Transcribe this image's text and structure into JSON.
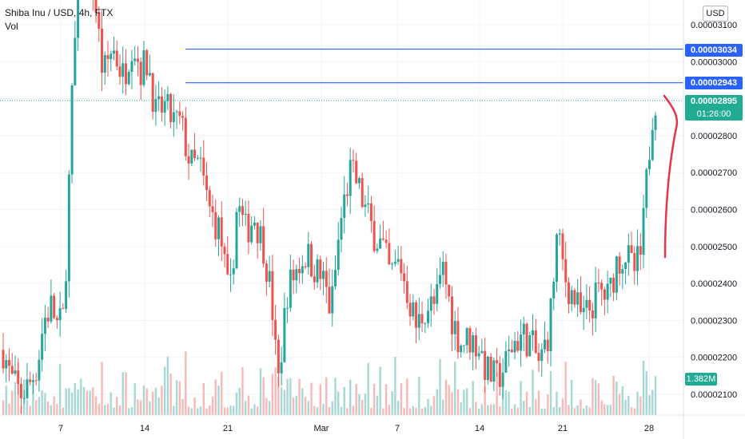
{
  "legend": {
    "title": "Shiba Inu / USD, 4h, FTX",
    "volume_label": "Vol"
  },
  "currency_button": "USD",
  "colors": {
    "up": "#26a69a",
    "down": "#ef5350",
    "vol_up": "#a7d8d3",
    "vol_down": "#f7b9b7",
    "hline": "#2962ff",
    "price_line": "#22ab94",
    "drawing": "#e8334a",
    "grid": "#f0f3fa"
  },
  "price_tags": {
    "hline_upper": "0.00003034",
    "hline_lower": "0.00002943",
    "last_price": "0.00002895",
    "countdown": "01:26:00",
    "volume": "1.382M"
  },
  "chart_data": {
    "type": "candlestick",
    "y_axis": {
      "ticks": [
        "0.00003100",
        "0.00003000",
        "0.00002900",
        "0.00002800",
        "0.00002700",
        "0.00002600",
        "0.00002500",
        "0.00002400",
        "0.00002300",
        "0.00002200",
        "0.00002100"
      ],
      "tick_values": [
        3.1e-05,
        3e-05,
        2.9e-05,
        2.8e-05,
        2.7e-05,
        2.6e-05,
        2.5e-05,
        2.4e-05,
        2.3e-05,
        2.2e-05,
        2.1e-05
      ]
    },
    "x_axis": {
      "ticks": [
        "7",
        "14",
        "21",
        "Mar",
        "7",
        "14",
        "21",
        "28"
      ]
    },
    "horizontal_lines": [
      3.034e-05,
      2.943e-05
    ],
    "last_price": 2.895e-05,
    "close_path": [
      {
        "t": 0,
        "p": 2.22e-05
      },
      {
        "t": 5,
        "p": 2.14e-05
      },
      {
        "t": 11,
        "p": 2.1e-05
      },
      {
        "t": 16,
        "p": 2.12e-05
      },
      {
        "t": 22,
        "p": 2.18e-05
      },
      {
        "t": 26,
        "p": 2.3e-05
      },
      {
        "t": 31,
        "p": 2.34e-05
      },
      {
        "t": 35,
        "p": 2.28e-05
      },
      {
        "t": 39,
        "p": 2.31e-05
      },
      {
        "t": 45,
        "p": 3e-05
      },
      {
        "t": 51,
        "p": 3.3e-05
      },
      {
        "t": 58,
        "p": 3.2e-05
      },
      {
        "t": 64,
        "p": 2.96e-05
      },
      {
        "t": 70,
        "p": 3.04e-05
      },
      {
        "t": 77,
        "p": 2.96e-05
      },
      {
        "t": 83,
        "p": 3.06e-05
      },
      {
        "t": 88,
        "p": 2.98e-05
      },
      {
        "t": 93,
        "p": 3e-05
      },
      {
        "t": 98,
        "p": 2.85e-05
      },
      {
        "t": 103,
        "p": 2.88e-05
      },
      {
        "t": 109,
        "p": 2.84e-05
      },
      {
        "t": 114,
        "p": 2.83e-05
      },
      {
        "t": 120,
        "p": 2.72e-05
      },
      {
        "t": 126,
        "p": 2.72e-05
      },
      {
        "t": 132,
        "p": 2.6e-05
      },
      {
        "t": 139,
        "p": 2.54e-05
      },
      {
        "t": 145,
        "p": 2.34e-05
      },
      {
        "t": 150,
        "p": 2.62e-05
      },
      {
        "t": 155,
        "p": 2.54e-05
      },
      {
        "t": 161,
        "p": 2.58e-05
      },
      {
        "t": 167,
        "p": 2.5e-05
      },
      {
        "t": 172,
        "p": 2.36e-05
      },
      {
        "t": 176,
        "p": 2.12e-05
      },
      {
        "t": 182,
        "p": 2.38e-05
      },
      {
        "t": 188,
        "p": 2.44e-05
      },
      {
        "t": 194,
        "p": 2.48e-05
      },
      {
        "t": 200,
        "p": 2.44e-05
      },
      {
        "t": 206,
        "p": 2.4e-05
      },
      {
        "t": 210,
        "p": 2.32e-05
      },
      {
        "t": 216,
        "p": 2.56e-05
      },
      {
        "t": 222,
        "p": 2.7e-05
      },
      {
        "t": 226,
        "p": 2.68e-05
      },
      {
        "t": 232,
        "p": 2.6e-05
      },
      {
        "t": 237,
        "p": 2.54e-05
      },
      {
        "t": 243,
        "p": 2.5e-05
      },
      {
        "t": 248,
        "p": 2.42e-05
      },
      {
        "t": 254,
        "p": 2.46e-05
      },
      {
        "t": 260,
        "p": 2.36e-05
      },
      {
        "t": 265,
        "p": 2.28e-05
      },
      {
        "t": 271,
        "p": 2.34e-05
      },
      {
        "t": 277,
        "p": 2.34e-05
      },
      {
        "t": 282,
        "p": 2.44e-05
      },
      {
        "t": 288,
        "p": 2.3e-05
      },
      {
        "t": 293,
        "p": 2.24e-05
      },
      {
        "t": 299,
        "p": 2.25e-05
      },
      {
        "t": 305,
        "p": 2.23e-05
      },
      {
        "t": 310,
        "p": 2.16e-05
      },
      {
        "t": 316,
        "p": 2.14e-05
      },
      {
        "t": 322,
        "p": 2.18e-05
      },
      {
        "t": 327,
        "p": 2.24e-05
      },
      {
        "t": 333,
        "p": 2.26e-05
      },
      {
        "t": 338,
        "p": 2.24e-05
      },
      {
        "t": 344,
        "p": 2.18e-05
      },
      {
        "t": 350,
        "p": 2.28e-05
      },
      {
        "t": 355,
        "p": 2.53e-05
      },
      {
        "t": 361,
        "p": 2.4e-05
      },
      {
        "t": 366,
        "p": 2.36e-05
      },
      {
        "t": 371,
        "p": 2.3e-05
      },
      {
        "t": 377,
        "p": 2.34e-05
      },
      {
        "t": 382,
        "p": 2.38e-05
      },
      {
        "t": 388,
        "p": 2.36e-05
      },
      {
        "t": 393,
        "p": 2.46e-05
      },
      {
        "t": 399,
        "p": 2.48e-05
      },
      {
        "t": 404,
        "p": 2.43e-05
      },
      {
        "t": 409,
        "p": 2.48e-05
      },
      {
        "t": 412,
        "p": 2.66e-05
      },
      {
        "t": 416,
        "p": 2.86e-05
      },
      {
        "t": 418,
        "p": 2.9e-05
      }
    ]
  }
}
